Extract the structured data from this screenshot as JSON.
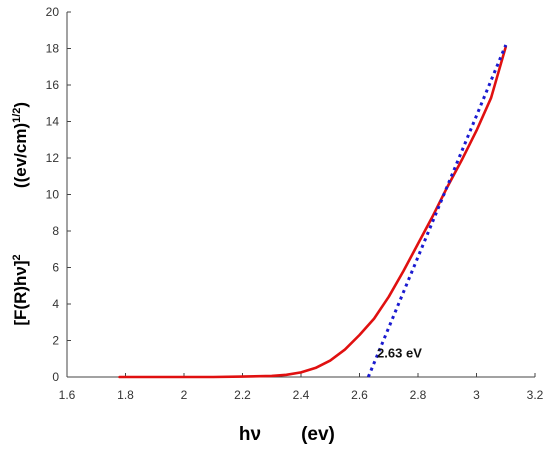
{
  "chart_data": {
    "type": "line",
    "title": "",
    "xlabel_parts": [
      "hν",
      "(ev)"
    ],
    "ylabel_lines": [
      "((ev/cm)1/2)",
      "[F(R)hν]2"
    ],
    "xlim": [
      1.6,
      3.2
    ],
    "ylim": [
      0,
      20
    ],
    "xticks": [
      "1.6",
      "1.8",
      "2",
      "2.2",
      "2.4",
      "2.6",
      "2.8",
      "3",
      "3.2"
    ],
    "yticks": [
      "0",
      "2",
      "4",
      "6",
      "8",
      "10",
      "12",
      "14",
      "16",
      "18",
      "20"
    ],
    "grid": false,
    "series": [
      {
        "color": "#e01010",
        "style": "solid",
        "x": [
          1.78,
          1.9,
          2.0,
          2.1,
          2.2,
          2.3,
          2.35,
          2.4,
          2.45,
          2.5,
          2.55,
          2.6,
          2.65,
          2.7,
          2.75,
          2.8,
          2.85,
          2.9,
          2.95,
          3.0,
          3.05,
          3.1
        ],
        "y": [
          0,
          0,
          0,
          0,
          0.02,
          0.06,
          0.12,
          0.25,
          0.5,
          0.9,
          1.5,
          2.3,
          3.2,
          4.4,
          5.8,
          7.3,
          8.8,
          10.4,
          11.9,
          13.5,
          15.3,
          18.1
        ]
      },
      {
        "color": "#1a1ad0",
        "style": "dotted",
        "x": [
          2.63,
          3.1
        ],
        "y": [
          0,
          18.2
        ]
      }
    ],
    "annotations": [
      {
        "text": "2.63 eV",
        "x": 2.66,
        "y": 1.3
      }
    ]
  }
}
